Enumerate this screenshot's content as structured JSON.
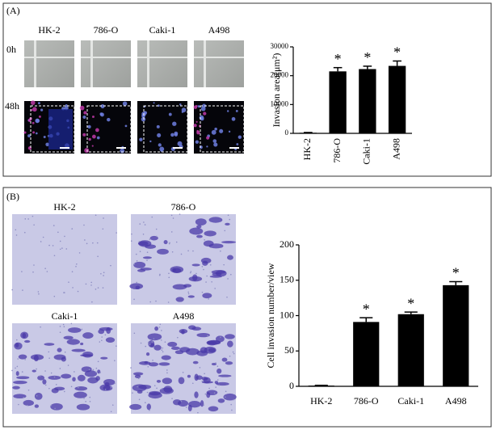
{
  "panel_a": {
    "label": "(A)",
    "columns": [
      "HK-2",
      "786-O",
      "Caki-1",
      "A498"
    ],
    "rows": [
      "0h",
      "48h"
    ]
  },
  "panel_b": {
    "label": "(B)",
    "images": [
      "HK-2",
      "786-O",
      "Caki-1",
      "A498"
    ]
  },
  "chart_data": [
    {
      "type": "bar",
      "y_label": "Invasion area(μm²)",
      "categories": [
        "HK-2",
        "786-O",
        "Caki-1",
        "A498"
      ],
      "values": [
        200,
        21500,
        22300,
        23400
      ],
      "errors": [
        100,
        1300,
        1000,
        1700
      ],
      "annotations": [
        null,
        "*",
        "*",
        "*"
      ],
      "color": "#000000",
      "ylim": [
        0,
        30000
      ],
      "yticks": [
        0,
        10000,
        20000,
        30000
      ]
    },
    {
      "type": "bar",
      "y_label": "Cell invasion number/view",
      "categories": [
        "HK-2",
        "786-O",
        "Caki-1",
        "A498"
      ],
      "values": [
        1,
        91,
        102,
        143
      ],
      "errors": [
        0.5,
        6,
        3,
        5
      ],
      "annotations": [
        null,
        "*",
        "*",
        "*"
      ],
      "color": "#000000",
      "ylim": [
        0,
        200
      ],
      "yticks": [
        0,
        50,
        100,
        150,
        200
      ]
    }
  ]
}
